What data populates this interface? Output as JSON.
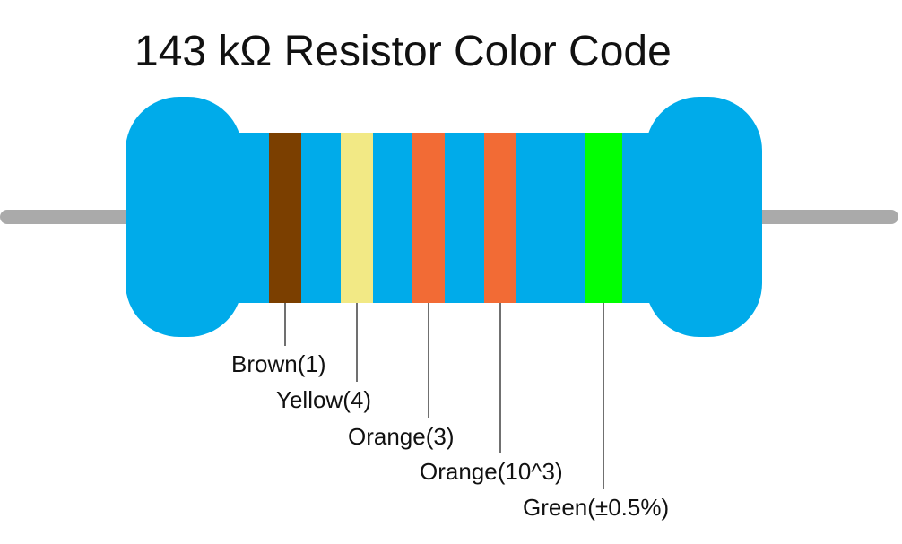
{
  "title": "143 kΩ Resistor Color Code",
  "body_color": "#00ABEA",
  "lead_color": "#AAAAAA",
  "bands": [
    {
      "label": "Brown(1)",
      "color": "#7B3F00"
    },
    {
      "label": "Yellow(4)",
      "color": "#F2E985"
    },
    {
      "label": "Orange(3)",
      "color": "#F26B35"
    },
    {
      "label": "Orange(10^3)",
      "color": "#F26B35"
    },
    {
      "label": "Green(±0.5%)",
      "color": "#00FF00"
    }
  ]
}
